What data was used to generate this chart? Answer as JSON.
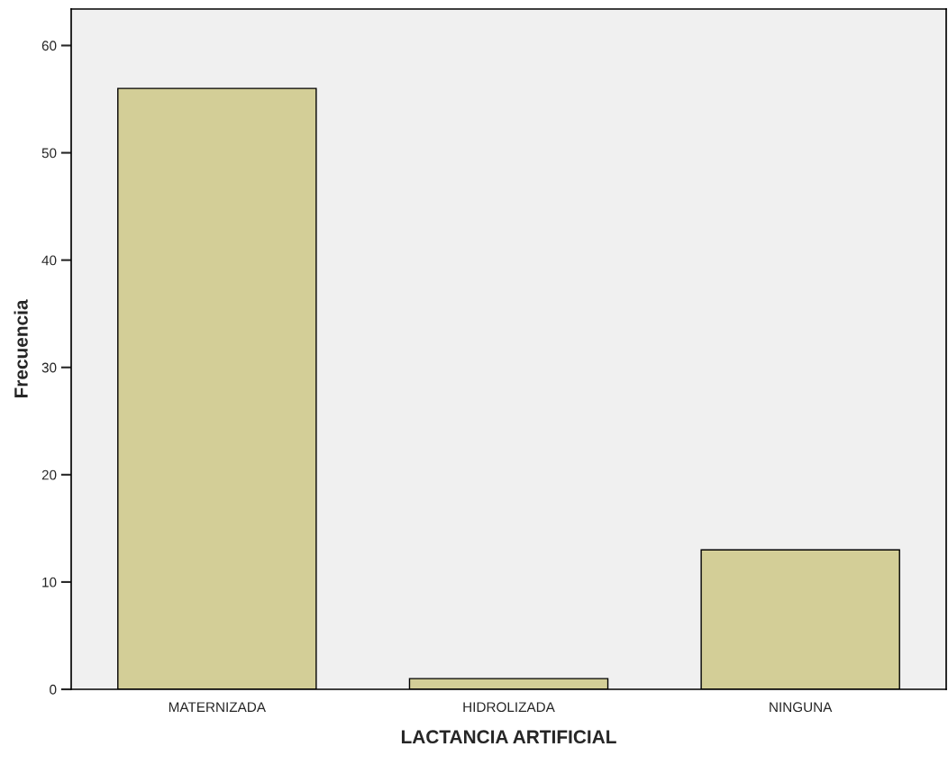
{
  "chart_data": {
    "type": "bar",
    "xlabel": "LACTANCIA ARTIFICIAL",
    "ylabel": "Frecuencia",
    "categories": [
      "MATERNIZADA",
      "HIDROLIZADA",
      "NINGUNA"
    ],
    "values": [
      56,
      1,
      13
    ],
    "color": "#d3ce97",
    "ylim": [
      0,
      63.4
    ],
    "yticks": [
      0,
      10,
      20,
      30,
      40,
      50,
      60
    ],
    "grid": false
  }
}
